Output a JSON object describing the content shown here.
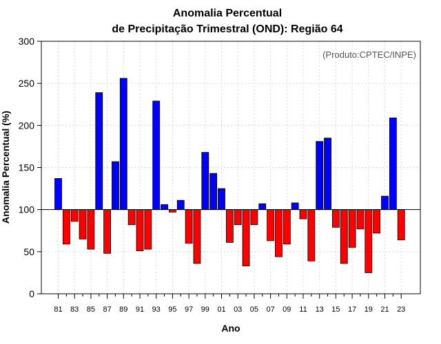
{
  "chart_data": {
    "type": "bar",
    "title_line1": "Anomalia Percentual",
    "title_line2": "de Precipitação Trimestral (OND): Região 64",
    "xlabel": "Ano",
    "ylabel": "Anomalia Percentual (%)",
    "credit": "(Produto:CPTEC/INPE)",
    "baseline": 100,
    "ylim": [
      0,
      300
    ],
    "yticks": [
      "0",
      "50",
      "100",
      "150",
      "200",
      "250",
      "300"
    ],
    "xtick_labels": [
      "81",
      "83",
      "85",
      "87",
      "89",
      "91",
      "93",
      "95",
      "97",
      "99",
      "01",
      "03",
      "05",
      "07",
      "09",
      "11",
      "13",
      "15",
      "17",
      "19",
      "21",
      "23"
    ],
    "categories": [
      "1981",
      "1982",
      "1983",
      "1984",
      "1985",
      "1986",
      "1987",
      "1988",
      "1989",
      "1990",
      "1991",
      "1992",
      "1993",
      "1994",
      "1995",
      "1996",
      "1997",
      "1998",
      "1999",
      "2000",
      "2001",
      "2002",
      "2003",
      "2004",
      "2005",
      "2006",
      "2007",
      "2008",
      "2009",
      "2010",
      "2011",
      "2012",
      "2013",
      "2014",
      "2015",
      "2016",
      "2017",
      "2018",
      "2019",
      "2020",
      "2021",
      "2022",
      "2023"
    ],
    "values": [
      137,
      59,
      86,
      65,
      53,
      239,
      48,
      157,
      256,
      82,
      51,
      53,
      229,
      106,
      97,
      111,
      60,
      36,
      168,
      143,
      125,
      61,
      82,
      33,
      82,
      107,
      63,
      44,
      59,
      108,
      89,
      39,
      181,
      185,
      79,
      36,
      55,
      77,
      25,
      72,
      116,
      209,
      64
    ],
    "colors": {
      "above": "#0000ff",
      "below": "#ff0000",
      "grid": "#d9d9d9",
      "axis": "#000000"
    }
  }
}
